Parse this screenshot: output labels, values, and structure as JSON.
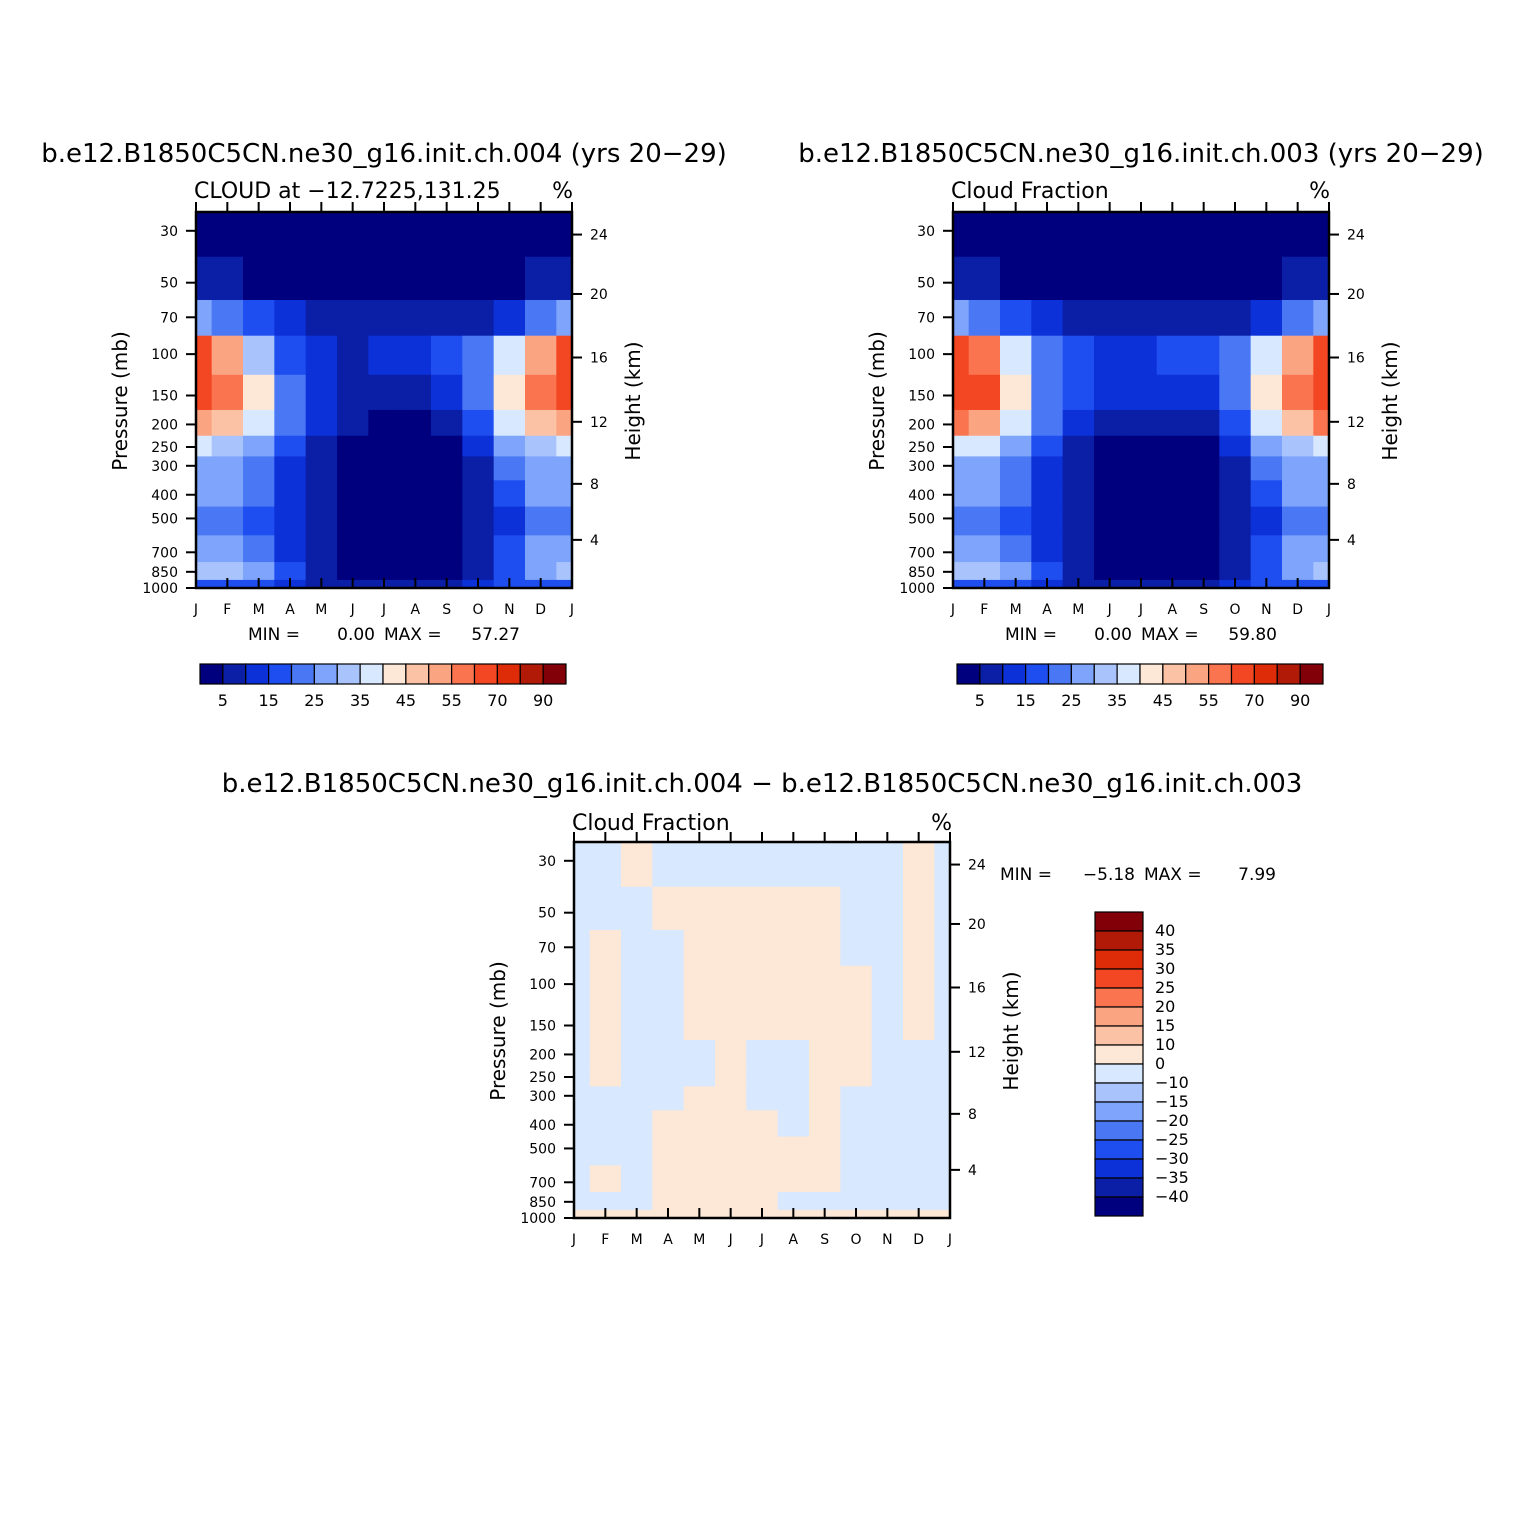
{
  "chart_data": [
    {
      "type": "heatmap",
      "title": "b.e12.B1850C5CN.ne30_g16.init.ch.004 (yrs 20−29)",
      "subtitle_left": "CLOUD at −12.7225,131.25",
      "units": "%",
      "xlabel": "",
      "ylabel": "Pressure (mb)",
      "ylabel_right": "Height (km)",
      "x_ticks": [
        "J",
        "F",
        "M",
        "A",
        "M",
        "J",
        "J",
        "A",
        "S",
        "O",
        "N",
        "D",
        "J"
      ],
      "y_ticks": [
        "30",
        "50",
        "70",
        "100",
        "150",
        "200",
        "250",
        "300",
        "400",
        "500",
        "700",
        "850",
        "1000"
      ],
      "y_ticks_right": [
        "24",
        "20",
        "16",
        "12",
        "8",
        "4"
      ],
      "min_label": "MIN =",
      "min_value": "0.00",
      "max_label": "MAX =",
      "max_value": "57.27",
      "colorbar_labels": [
        "5",
        "15",
        "25",
        "35",
        "45",
        "55",
        "70",
        "90"
      ],
      "colorbar_colors": [
        "#00007f",
        "#0a1fa6",
        "#0c31d8",
        "#1f4ef0",
        "#4a78f5",
        "#7ea4fb",
        "#a9c4fd",
        "#d8e8fe",
        "#fde7d6",
        "#fcc2a6",
        "#fba482",
        "#fb7450",
        "#f34622",
        "#de2c08",
        "#b21a08",
        "#820008"
      ],
      "grid": [
        [
          0,
          0,
          0,
          0,
          0,
          0,
          0,
          0,
          0,
          0,
          0,
          0,
          0
        ],
        [
          1,
          1,
          0,
          0,
          0,
          0,
          0,
          0,
          0,
          0,
          0,
          1,
          1
        ],
        [
          5,
          4,
          3,
          2,
          1,
          1,
          1,
          1,
          1,
          1,
          2,
          4,
          5
        ],
        [
          12,
          10,
          6,
          3,
          2,
          1,
          2,
          2,
          3,
          4,
          7,
          10,
          12
        ],
        [
          12,
          11,
          8,
          4,
          2,
          1,
          1,
          1,
          2,
          4,
          8,
          11,
          12
        ],
        [
          10,
          9,
          7,
          4,
          2,
          1,
          0,
          0,
          1,
          3,
          7,
          9,
          10
        ],
        [
          7,
          6,
          5,
          3,
          1,
          0,
          0,
          0,
          0,
          2,
          5,
          6,
          7
        ],
        [
          5,
          5,
          4,
          2,
          1,
          0,
          0,
          0,
          0,
          1,
          4,
          5,
          5
        ],
        [
          5,
          5,
          4,
          2,
          1,
          0,
          0,
          0,
          0,
          1,
          3,
          5,
          5
        ],
        [
          4,
          4,
          3,
          2,
          1,
          0,
          0,
          0,
          0,
          1,
          2,
          4,
          4
        ],
        [
          5,
          5,
          4,
          2,
          1,
          0,
          0,
          0,
          0,
          1,
          3,
          5,
          5
        ],
        [
          6,
          6,
          5,
          3,
          1,
          0,
          0,
          0,
          0,
          1,
          3,
          5,
          6
        ],
        [
          3,
          3,
          3,
          2,
          1,
          1,
          1,
          1,
          1,
          2,
          3,
          3,
          3
        ]
      ]
    },
    {
      "type": "heatmap",
      "title": "b.e12.B1850C5CN.ne30_g16.init.ch.003 (yrs 20−29)",
      "subtitle_left": "Cloud Fraction",
      "units": "%",
      "xlabel": "",
      "ylabel": "Pressure (mb)",
      "ylabel_right": "Height (km)",
      "x_ticks": [
        "J",
        "F",
        "M",
        "A",
        "M",
        "J",
        "J",
        "A",
        "S",
        "O",
        "N",
        "D",
        "J"
      ],
      "y_ticks": [
        "30",
        "50",
        "70",
        "100",
        "150",
        "200",
        "250",
        "300",
        "400",
        "500",
        "700",
        "850",
        "1000"
      ],
      "y_ticks_right": [
        "24",
        "20",
        "16",
        "12",
        "8",
        "4"
      ],
      "min_label": "MIN =",
      "min_value": "0.00",
      "max_label": "MAX =",
      "max_value": "59.80",
      "colorbar_labels": [
        "5",
        "15",
        "25",
        "35",
        "45",
        "55",
        "70",
        "90"
      ],
      "colorbar_colors": [
        "#00007f",
        "#0a1fa6",
        "#0c31d8",
        "#1f4ef0",
        "#4a78f5",
        "#7ea4fb",
        "#a9c4fd",
        "#d8e8fe",
        "#fde7d6",
        "#fcc2a6",
        "#fba482",
        "#fb7450",
        "#f34622",
        "#de2c08",
        "#b21a08",
        "#820008"
      ],
      "grid": [
        [
          0,
          0,
          0,
          0,
          0,
          0,
          0,
          0,
          0,
          0,
          0,
          0,
          0
        ],
        [
          1,
          1,
          0,
          0,
          0,
          0,
          0,
          0,
          0,
          0,
          0,
          1,
          1
        ],
        [
          5,
          4,
          3,
          2,
          1,
          1,
          1,
          1,
          1,
          1,
          2,
          4,
          5
        ],
        [
          12,
          11,
          7,
          4,
          3,
          2,
          2,
          3,
          3,
          4,
          7,
          10,
          12
        ],
        [
          12,
          12,
          8,
          4,
          3,
          2,
          2,
          2,
          2,
          4,
          8,
          11,
          12
        ],
        [
          11,
          10,
          7,
          4,
          2,
          1,
          1,
          1,
          1,
          3,
          7,
          9,
          11
        ],
        [
          7,
          7,
          5,
          3,
          1,
          0,
          0,
          0,
          0,
          2,
          5,
          6,
          7
        ],
        [
          5,
          5,
          4,
          2,
          1,
          0,
          0,
          0,
          0,
          1,
          4,
          5,
          5
        ],
        [
          5,
          5,
          4,
          2,
          1,
          0,
          0,
          0,
          0,
          1,
          3,
          5,
          5
        ],
        [
          4,
          4,
          3,
          2,
          1,
          0,
          0,
          0,
          0,
          1,
          2,
          4,
          4
        ],
        [
          5,
          5,
          4,
          2,
          1,
          0,
          0,
          0,
          0,
          1,
          3,
          5,
          5
        ],
        [
          6,
          6,
          5,
          3,
          1,
          0,
          0,
          0,
          0,
          1,
          3,
          5,
          6
        ],
        [
          3,
          3,
          3,
          2,
          1,
          1,
          1,
          1,
          1,
          2,
          3,
          3,
          3
        ]
      ]
    },
    {
      "type": "heatmap",
      "title": "b.e12.B1850C5CN.ne30_g16.init.ch.004 − b.e12.B1850C5CN.ne30_g16.init.ch.003",
      "subtitle_left": "Cloud Fraction",
      "units": "%",
      "xlabel": "",
      "ylabel": "Pressure (mb)",
      "ylabel_right": "Height (km)",
      "x_ticks": [
        "J",
        "F",
        "M",
        "A",
        "M",
        "J",
        "J",
        "A",
        "S",
        "O",
        "N",
        "D",
        "J"
      ],
      "y_ticks": [
        "30",
        "50",
        "70",
        "100",
        "150",
        "200",
        "250",
        "300",
        "400",
        "500",
        "700",
        "850",
        "1000"
      ],
      "y_ticks_right": [
        "24",
        "20",
        "16",
        "12",
        "8",
        "4"
      ],
      "min_label": "MIN =",
      "min_value": "−5.18",
      "max_label": "MAX =",
      "max_value": "7.99",
      "colorbar_labels": [
        "40",
        "35",
        "30",
        "25",
        "20",
        "15",
        "10",
        "0",
        "−10",
        "−15",
        "−20",
        "−25",
        "−30",
        "−35",
        "−40"
      ],
      "colorbar_colors": [
        "#820008",
        "#b21a08",
        "#de2c08",
        "#f34622",
        "#fb7450",
        "#fba482",
        "#fcc2a6",
        "#fde7d6",
        "#d8e8fe",
        "#a9c4fd",
        "#7ea4fb",
        "#4a78f5",
        "#1f4ef0",
        "#0c31d8",
        "#0a1fa6",
        "#00007f"
      ],
      "grid": [
        [
          8,
          8,
          7,
          8,
          8,
          8,
          8,
          8,
          8,
          8,
          8,
          7,
          8
        ],
        [
          8,
          8,
          8,
          7,
          7,
          7,
          7,
          7,
          7,
          8,
          8,
          7,
          8
        ],
        [
          8,
          7,
          8,
          8,
          7,
          7,
          7,
          7,
          7,
          8,
          8,
          7,
          8
        ],
        [
          8,
          7,
          8,
          8,
          7,
          7,
          7,
          7,
          7,
          7,
          8,
          7,
          8
        ],
        [
          8,
          7,
          8,
          8,
          7,
          7,
          7,
          7,
          7,
          7,
          8,
          7,
          8
        ],
        [
          8,
          7,
          8,
          8,
          8,
          7,
          8,
          8,
          7,
          7,
          8,
          8,
          8
        ],
        [
          8,
          7,
          8,
          8,
          8,
          7,
          8,
          8,
          7,
          7,
          8,
          8,
          8
        ],
        [
          8,
          8,
          8,
          8,
          7,
          7,
          8,
          8,
          7,
          8,
          8,
          8,
          8
        ],
        [
          8,
          8,
          8,
          7,
          7,
          7,
          7,
          8,
          7,
          8,
          8,
          8,
          8
        ],
        [
          8,
          8,
          8,
          7,
          7,
          7,
          7,
          7,
          7,
          8,
          8,
          8,
          8
        ],
        [
          8,
          7,
          8,
          7,
          7,
          7,
          7,
          7,
          7,
          8,
          8,
          8,
          8
        ],
        [
          8,
          8,
          8,
          7,
          7,
          7,
          7,
          8,
          8,
          8,
          8,
          8,
          8
        ],
        [
          7,
          7,
          7,
          7,
          7,
          7,
          7,
          7,
          7,
          7,
          7,
          7,
          7
        ]
      ]
    }
  ]
}
